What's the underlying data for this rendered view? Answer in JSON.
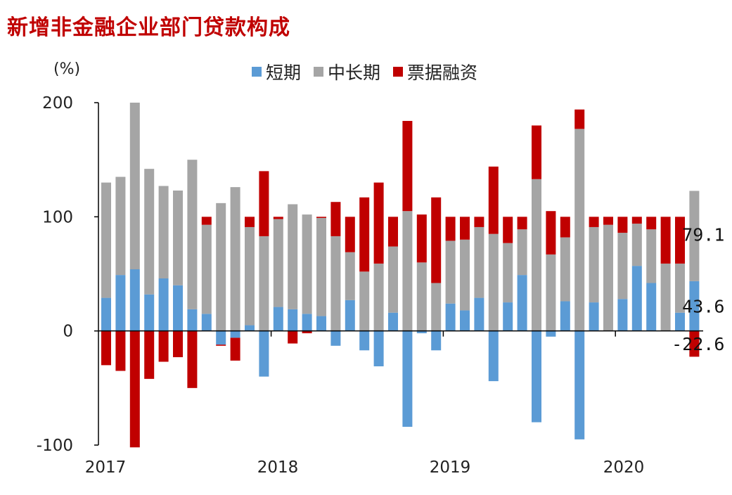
{
  "chart_data": {
    "type": "bar",
    "stacked": true,
    "title": "新增非金融企业部门贷款构成",
    "ylabel": "(%)",
    "ylim": [
      -100,
      200
    ],
    "yticks": [
      "200",
      "100",
      "0",
      "-100"
    ],
    "ytick_values": [
      200,
      100,
      0,
      -100
    ],
    "year_labels": [
      {
        "label": "2017",
        "index": 0
      },
      {
        "label": "2018",
        "index": 12
      },
      {
        "label": "2019",
        "index": 24
      },
      {
        "label": "2020",
        "index": 36
      }
    ],
    "colors": {
      "短期": "#5b9bd5",
      "中长期": "#a5a5a5",
      "票据融资": "#c00000",
      "axis": "#000000",
      "title": "#c00000"
    },
    "legend_position": "top-center",
    "series": [
      {
        "name": "短期",
        "color": "#5b9bd5",
        "values": [
          29,
          49,
          54,
          32,
          46,
          40,
          19,
          15,
          -12,
          -6,
          5,
          -40,
          21,
          19,
          15,
          13,
          -13,
          27,
          -17,
          -31,
          16,
          -84,
          -2,
          -17,
          24,
          18,
          29,
          -44,
          25,
          49,
          -80,
          -5,
          26,
          -95,
          25,
          0,
          28,
          57,
          42,
          0,
          16,
          43.6
        ]
      },
      {
        "name": "中长期",
        "color": "#a5a5a5",
        "values": [
          101,
          86,
          146,
          110,
          81,
          83,
          131,
          78,
          112,
          126,
          86,
          83,
          77,
          92,
          87,
          86,
          83,
          42,
          52,
          59,
          58,
          105,
          60,
          42,
          55,
          62,
          62,
          85,
          52,
          40,
          133,
          67,
          56,
          177,
          66,
          93,
          58,
          37,
          47,
          59,
          43,
          79.1
        ]
      },
      {
        "name": "票据融资",
        "color": "#c00000",
        "values": [
          -30,
          -35,
          -102,
          -42,
          -27,
          -23,
          -50,
          7,
          -1,
          -20,
          9,
          57,
          2,
          -11,
          -2,
          1,
          30,
          31,
          65,
          71,
          26,
          79,
          42,
          75,
          21,
          20,
          9,
          59,
          23,
          11,
          47,
          38,
          18,
          17,
          9,
          7,
          14,
          6,
          11,
          41,
          41,
          -22.6
        ]
      }
    ],
    "annotations": [
      "79.1",
      "43.6",
      "-22.6"
    ]
  },
  "legend": [
    {
      "label": "短期",
      "color": "#5b9bd5"
    },
    {
      "label": "中长期",
      "color": "#a5a5a5"
    },
    {
      "label": "票据融资",
      "color": "#c00000"
    }
  ]
}
